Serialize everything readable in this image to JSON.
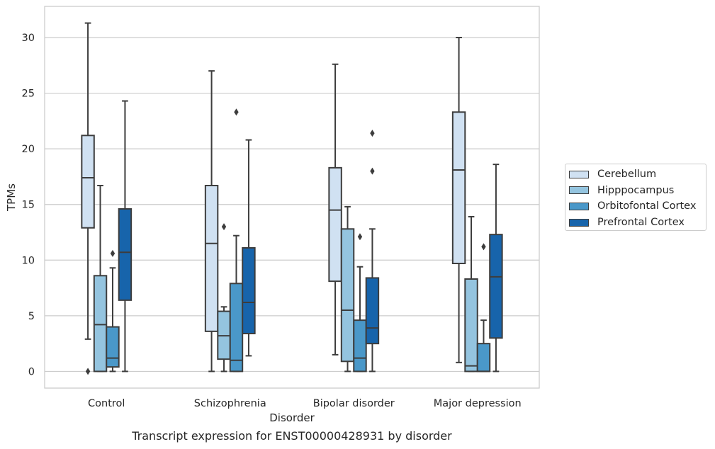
{
  "chart_data": {
    "type": "boxplot",
    "title": "",
    "caption": "Transcript expression for ENST00000428931 by disorder",
    "xlabel": "Disorder",
    "ylabel": "TPMs",
    "ylim": [
      -1.5,
      32.8
    ],
    "yticks": [
      0,
      5,
      10,
      15,
      20,
      25,
      30
    ],
    "grid": "horizontal",
    "legend_position": "right",
    "categories": [
      "Control",
      "Schizophrenia",
      "Bipolar disorder",
      "Major depression"
    ],
    "series": [
      {
        "name": "Cerebellum",
        "color": "#d0e1f2",
        "boxes": [
          {
            "whislo": 2.9,
            "q1": 12.9,
            "med": 17.4,
            "q3": 21.2,
            "whishi": 31.3,
            "fliers": [
              0.0
            ]
          },
          {
            "whislo": 0.0,
            "q1": 3.6,
            "med": 11.5,
            "q3": 16.7,
            "whishi": 27.0,
            "fliers": []
          },
          {
            "whislo": 1.5,
            "q1": 8.1,
            "med": 14.5,
            "q3": 18.3,
            "whishi": 27.6,
            "fliers": []
          },
          {
            "whislo": 0.8,
            "q1": 9.7,
            "med": 18.1,
            "q3": 23.3,
            "whishi": 30.0,
            "fliers": []
          }
        ]
      },
      {
        "name": "Hipppocampus",
        "color": "#94c4df",
        "boxes": [
          {
            "whislo": 0.0,
            "q1": 0.0,
            "med": 4.2,
            "q3": 8.6,
            "whishi": 16.7,
            "fliers": []
          },
          {
            "whislo": 0.0,
            "q1": 1.1,
            "med": 3.2,
            "q3": 5.4,
            "whishi": 5.8,
            "fliers": [
              13.0
            ]
          },
          {
            "whislo": 0.0,
            "q1": 0.9,
            "med": 5.5,
            "q3": 12.8,
            "whishi": 14.8,
            "fliers": []
          },
          {
            "whislo": 0.0,
            "q1": 0.0,
            "med": 0.5,
            "q3": 8.3,
            "whishi": 13.9,
            "fliers": []
          }
        ]
      },
      {
        "name": "Orbitofontal Cortex",
        "color": "#4a98c9",
        "boxes": [
          {
            "whislo": 0.0,
            "q1": 0.4,
            "med": 1.2,
            "q3": 4.0,
            "whishi": 9.3,
            "fliers": [
              10.6
            ]
          },
          {
            "whislo": 0.0,
            "q1": 0.0,
            "med": 1.0,
            "q3": 7.9,
            "whishi": 12.2,
            "fliers": [
              23.3
            ]
          },
          {
            "whislo": 0.0,
            "q1": 0.0,
            "med": 1.2,
            "q3": 4.6,
            "whishi": 9.4,
            "fliers": [
              12.1
            ]
          },
          {
            "whislo": 0.0,
            "q1": 0.0,
            "med": 0.0,
            "q3": 2.5,
            "whishi": 4.6,
            "fliers": [
              11.2
            ]
          }
        ]
      },
      {
        "name": "Prefrontal Cortex",
        "color": "#1764ab",
        "boxes": [
          {
            "whislo": 0.0,
            "q1": 6.4,
            "med": 10.7,
            "q3": 14.6,
            "whishi": 24.3,
            "fliers": []
          },
          {
            "whislo": 1.4,
            "q1": 3.4,
            "med": 6.2,
            "q3": 11.1,
            "whishi": 20.8,
            "fliers": []
          },
          {
            "whislo": 0.0,
            "q1": 2.5,
            "med": 3.9,
            "q3": 8.4,
            "whishi": 12.8,
            "fliers": [
              18.0,
              21.4
            ]
          },
          {
            "whislo": 0.0,
            "q1": 3.0,
            "med": 8.5,
            "q3": 12.3,
            "whishi": 18.6,
            "fliers": []
          }
        ]
      }
    ]
  }
}
